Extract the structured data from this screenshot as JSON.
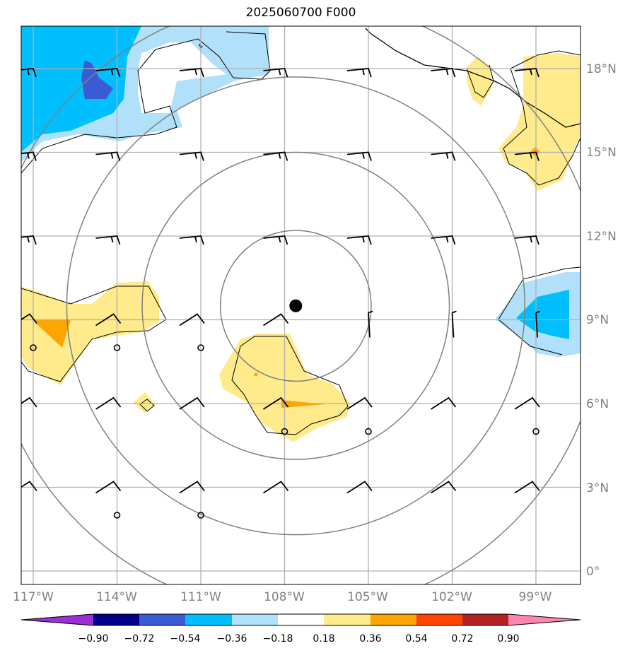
{
  "title": "2025060700 F000",
  "lat_labels": [
    "18°N",
    "15°N",
    "12°N",
    "9°N",
    "6°N",
    "3°N",
    "0°"
  ],
  "lon_labels": [
    "117°W",
    "114°W",
    "111°W",
    "108°W",
    "105°W",
    "102°W",
    "99°W"
  ],
  "colorbar": {
    "ticks": [
      "−0.90",
      "−0.72",
      "−0.54",
      "−0.36",
      "−0.18",
      "0.18",
      "0.36",
      "0.54",
      "0.72",
      "0.90"
    ],
    "colors": [
      "#9b30d9",
      "#00008b",
      "#3a5bd3",
      "#00bfff",
      "#b0e0fa",
      "#ffffff",
      "#ffea8c",
      "#ffa500",
      "#ff4500",
      "#b22222",
      "#ff85b0"
    ]
  },
  "fill_colors": {
    "neg_light": "#b0e0fa",
    "neg_mid": "#00bfff",
    "neg_dark": "#3a5bd3",
    "pos_light": "#ffea8c",
    "pos_mid": "#ffa500"
  },
  "center_marker": {
    "lon": -107.6,
    "lat": 9.5,
    "type": "storm-center"
  },
  "range_rings_deg": [
    2.7,
    5.5,
    8.2,
    11.0
  ],
  "wind_grid": {
    "lons": [
      -117,
      -114,
      -111,
      -108,
      -105,
      -102,
      -99
    ],
    "lats": [
      18,
      15,
      12,
      9,
      6,
      3
    ],
    "calm_points": [
      [
        -117,
        8
      ],
      [
        -114,
        8
      ],
      [
        -111,
        8
      ],
      [
        -108,
        5
      ],
      [
        -105,
        5
      ],
      [
        -99,
        5
      ],
      [
        -114,
        2
      ],
      [
        -111,
        2
      ]
    ]
  }
}
